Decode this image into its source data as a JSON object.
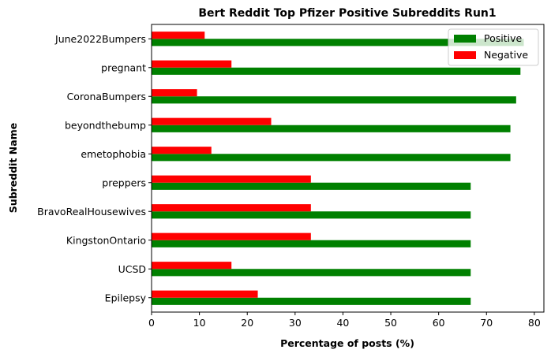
{
  "chart_data": {
    "type": "bar",
    "orientation": "horizontal",
    "title": "Bert Reddit Top Pfizer Positive Subreddits Run1",
    "xlabel": "Percentage of posts (%)",
    "ylabel": "Subreddit Name",
    "xlim": [
      0,
      82
    ],
    "xticks": [
      0,
      10,
      20,
      30,
      40,
      50,
      60,
      70,
      80
    ],
    "categories": [
      "Epilepsy",
      "UCSD",
      "KingstonOntario",
      "BravoRealHousewives",
      "preppers",
      "emetophobia",
      "beyondthebump",
      "CoronaBumpers",
      "pregnant",
      "June2022Bumpers"
    ],
    "series": [
      {
        "name": "Positive",
        "color": "#008000",
        "values": [
          66.7,
          66.7,
          66.7,
          66.7,
          66.7,
          75.0,
          75.0,
          76.2,
          77.1,
          77.8
        ]
      },
      {
        "name": "Negative",
        "color": "#ff0000",
        "values": [
          22.2,
          16.7,
          33.3,
          33.3,
          33.3,
          12.5,
          25.0,
          9.5,
          16.7,
          11.1
        ]
      }
    ],
    "legend_position": "top-right",
    "grid": false
  }
}
